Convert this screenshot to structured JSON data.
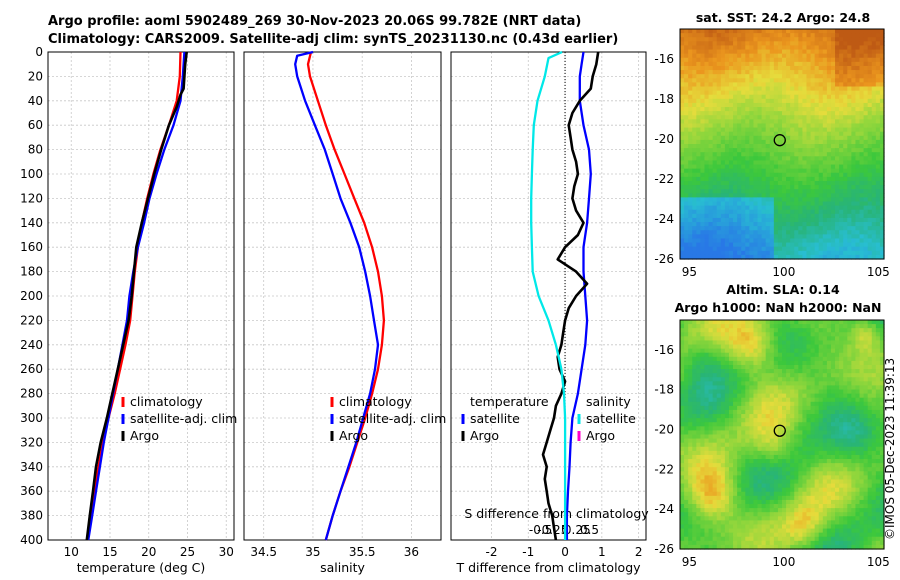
{
  "header": {
    "line1": "Argo profile: aoml 5902489_269 30-Nov-2023 20.06S 99.782E (NRT data)",
    "line2": "Climatology: CARS2009. Satellite-adj clim: synTS_20231130.nc (0.43d earlier)"
  },
  "sst_map": {
    "title": "sat. SST: 24.2 Argo: 24.8"
  },
  "sla_map": {
    "title1": "Altim. SLA: 0.14",
    "title2": "Argo h1000: NaN h2000: NaN"
  },
  "footer": {
    "stamp": "©IMOS 05-Dec-2023 11:39:13"
  },
  "colors": {
    "climatology": "#ff0000",
    "satellite": "#0000ff",
    "argo": "#000000",
    "sat_salinity": "#00e8e8",
    "argo_salinity": "#ff00cc"
  },
  "chart_data": [
    {
      "type": "line",
      "name": "temperature",
      "xlabel": "temperature (deg C)",
      "ylabel": "",
      "xlim": [
        7,
        31
      ],
      "ylim": [
        0,
        400
      ],
      "xticks": [
        10,
        15,
        20,
        25,
        30
      ],
      "yticks": [
        0,
        20,
        40,
        60,
        80,
        100,
        120,
        140,
        160,
        180,
        200,
        220,
        240,
        260,
        280,
        300,
        320,
        340,
        360,
        380,
        400
      ],
      "legend": [
        {
          "label": "climatology",
          "color": "#ff0000"
        },
        {
          "label": "satellite-adj. clim",
          "color": "#0000ff"
        },
        {
          "label": "Argo",
          "color": "#000000"
        }
      ],
      "series": [
        {
          "name": "climatology",
          "color": "#ff0000",
          "depth": [
            0,
            20,
            40,
            60,
            80,
            100,
            120,
            140,
            160,
            180,
            200,
            220,
            240,
            260,
            280,
            300,
            320,
            340,
            360,
            380,
            400
          ],
          "values": [
            24.1,
            24.0,
            23.6,
            22.6,
            21.5,
            20.6,
            19.8,
            19.1,
            18.6,
            18.2,
            17.9,
            17.6,
            17.0,
            16.3,
            15.6,
            14.8,
            14.1,
            13.5,
            13.0,
            12.5,
            12.1
          ]
        },
        {
          "name": "satellite",
          "color": "#0000ff",
          "depth": [
            0,
            20,
            40,
            60,
            80,
            100,
            120,
            140,
            160,
            180,
            200,
            220,
            240,
            260,
            280,
            300,
            320,
            340,
            360,
            380,
            400
          ],
          "values": [
            24.6,
            24.4,
            24.1,
            23.2,
            22.0,
            21.0,
            20.1,
            19.4,
            18.6,
            18.0,
            17.5,
            17.2,
            16.6,
            16.0,
            15.4,
            14.8,
            14.2,
            13.7,
            13.2,
            12.7,
            12.2
          ]
        },
        {
          "name": "Argo",
          "color": "#000000",
          "depth": [
            0,
            10,
            20,
            30,
            35,
            45,
            60,
            80,
            100,
            120,
            140,
            160,
            180,
            200,
            220,
            240,
            260,
            280,
            300,
            320,
            340,
            360,
            380,
            400
          ],
          "values": [
            24.9,
            24.7,
            24.6,
            24.5,
            24.1,
            23.6,
            22.6,
            21.6,
            20.7,
            19.9,
            19.1,
            18.4,
            18.1,
            17.8,
            17.4,
            16.7,
            16.0,
            15.3,
            14.6,
            13.8,
            13.2,
            12.8,
            12.4,
            12.0
          ]
        }
      ]
    },
    {
      "type": "line",
      "name": "salinity",
      "xlabel": "salinity",
      "ylabel": "",
      "xlim": [
        34.3,
        36.3
      ],
      "ylim": [
        0,
        400
      ],
      "xticks": [
        34.5,
        35,
        35.5,
        36
      ],
      "legend": [
        {
          "label": "climatology",
          "color": "#ff0000"
        },
        {
          "label": "satellite-adj. clim",
          "color": "#0000ff"
        },
        {
          "label": "Argo",
          "color": "#000000"
        }
      ],
      "series": [
        {
          "name": "climatology",
          "color": "#ff0000",
          "depth": [
            0,
            10,
            20,
            40,
            60,
            80,
            100,
            120,
            140,
            160,
            180,
            200,
            220,
            240,
            260,
            280,
            300,
            320,
            340,
            360,
            380,
            400
          ],
          "values": [
            34.98,
            34.95,
            34.97,
            35.05,
            35.13,
            35.22,
            35.32,
            35.42,
            35.52,
            35.6,
            35.66,
            35.7,
            35.72,
            35.7,
            35.66,
            35.6,
            35.53,
            35.45,
            35.37,
            35.28,
            35.2,
            35.13
          ]
        },
        {
          "name": "satellite",
          "color": "#0000ff",
          "depth": [
            0,
            3,
            10,
            20,
            40,
            60,
            80,
            100,
            120,
            140,
            160,
            180,
            200,
            220,
            240,
            260,
            280,
            300,
            320,
            340,
            360,
            380,
            400
          ],
          "values": [
            35.0,
            34.84,
            34.82,
            34.84,
            34.92,
            35.02,
            35.12,
            35.2,
            35.28,
            35.38,
            35.47,
            35.53,
            35.58,
            35.62,
            35.66,
            35.63,
            35.58,
            35.51,
            35.44,
            35.36,
            35.28,
            35.2,
            35.13
          ]
        }
      ]
    },
    {
      "type": "line",
      "name": "difference",
      "xlabel": "T difference from climatology",
      "xlabel2": "S difference from climatology",
      "xlim": [
        -3.1,
        2.2
      ],
      "xticks": [
        -2,
        -1,
        0,
        1,
        2
      ],
      "sxticks": [
        -0.5,
        -0.25,
        0,
        0.25,
        0.5
      ],
      "ylim": [
        0,
        400
      ],
      "legend_temperature": [
        {
          "label": "temperature",
          "color": ""
        },
        {
          "label": "satellite",
          "color": "#0000ff"
        },
        {
          "label": "Argo",
          "color": "#000000"
        }
      ],
      "legend_salinity": [
        {
          "label": "salinity",
          "color": ""
        },
        {
          "label": "satellite",
          "color": "#00e8e8"
        },
        {
          "label": "Argo",
          "color": "#ff00cc"
        }
      ],
      "series": [
        {
          "name": "T satellite",
          "color": "#0000ff",
          "depth": [
            0,
            10,
            20,
            40,
            60,
            80,
            100,
            120,
            140,
            160,
            180,
            200,
            220,
            240,
            260,
            280,
            300,
            320,
            340,
            360,
            380,
            400
          ],
          "values": [
            0.5,
            0.45,
            0.4,
            0.4,
            0.5,
            0.65,
            0.7,
            0.65,
            0.6,
            0.5,
            0.5,
            0.55,
            0.6,
            0.55,
            0.45,
            0.35,
            0.2,
            0.15,
            0.12,
            0.08,
            0.05,
            0.05
          ]
        },
        {
          "name": "T Argo",
          "color": "#000000",
          "depth": [
            0,
            10,
            20,
            30,
            40,
            50,
            60,
            70,
            80,
            90,
            100,
            110,
            120,
            130,
            140,
            150,
            160,
            170,
            180,
            190,
            200,
            210,
            220,
            230,
            240,
            250,
            260,
            270,
            280,
            290,
            300,
            310,
            320,
            330,
            340,
            350,
            360,
            370,
            380,
            390,
            400
          ],
          "values": [
            0.9,
            0.85,
            0.75,
            0.7,
            0.4,
            0.2,
            0.1,
            0.15,
            0.2,
            0.3,
            0.35,
            0.25,
            0.2,
            0.3,
            0.5,
            0.35,
            0.0,
            -0.2,
            0.3,
            0.6,
            0.3,
            0.1,
            0.0,
            -0.05,
            -0.1,
            -0.2,
            -0.15,
            0.0,
            -0.1,
            -0.25,
            -0.3,
            -0.4,
            -0.5,
            -0.6,
            -0.5,
            -0.55,
            -0.5,
            -0.45,
            -0.35,
            -0.3,
            -0.25
          ]
        },
        {
          "name": "S satellite",
          "color": "#00e8e8",
          "depth": [
            0,
            5,
            20,
            40,
            60,
            80,
            100,
            120,
            140,
            160,
            180,
            200,
            220,
            240,
            260,
            280,
            300,
            320,
            340,
            360,
            380,
            400
          ],
          "values": [
            -0.08,
            -0.45,
            -0.55,
            -0.75,
            -0.85,
            -0.88,
            -0.9,
            -0.92,
            -0.92,
            -0.9,
            -0.88,
            -0.72,
            -0.45,
            -0.25,
            -0.1,
            -0.03,
            0,
            0,
            0,
            0,
            0,
            0
          ]
        }
      ]
    },
    {
      "type": "heatmap",
      "name": "sst_map",
      "title": "sat. SST: 24.2 Argo: 24.8",
      "xlim": [
        94.5,
        105.3
      ],
      "ylim": [
        -26,
        -14.5
      ],
      "xticks": [
        95,
        100,
        105
      ],
      "yticks": [
        -16,
        -18,
        -20,
        -22,
        -24,
        -26
      ],
      "marker": {
        "lon": 99.782,
        "lat": -20.06
      }
    },
    {
      "type": "heatmap",
      "name": "sla_map",
      "title": "Altim. SLA: 0.14",
      "xlim": [
        94.5,
        105.3
      ],
      "ylim": [
        -26,
        -14.5
      ],
      "xticks": [
        95,
        100,
        105
      ],
      "yticks": [
        -16,
        -18,
        -20,
        -22,
        -24,
        -26
      ],
      "marker": {
        "lon": 99.782,
        "lat": -20.06
      }
    }
  ]
}
